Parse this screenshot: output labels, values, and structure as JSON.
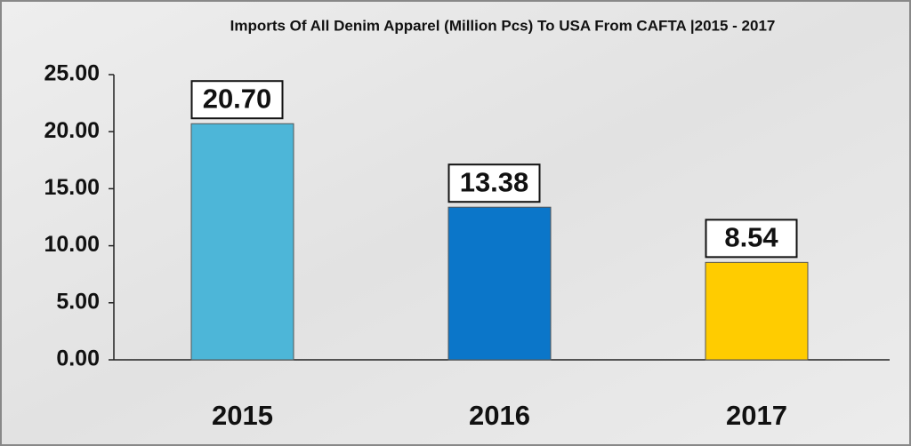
{
  "chart_data": {
    "type": "bar",
    "title": "Imports Of All Denim Apparel (Million Pcs) To USA From CAFTA |2015 - 2017",
    "categories": [
      "2015",
      "2016",
      "2017"
    ],
    "values": [
      20.7,
      13.38,
      8.54
    ],
    "value_labels": [
      "20.70",
      "13.38",
      "8.54"
    ],
    "colors": [
      "#4db6d8",
      "#0b76c9",
      "#ffcc00"
    ],
    "ylim": [
      0,
      25
    ],
    "yticks": [
      {
        "value": 0,
        "label": "0.00"
      },
      {
        "value": 5,
        "label": "5.00"
      },
      {
        "value": 10,
        "label": "10.00"
      },
      {
        "value": 15,
        "label": "15.00"
      },
      {
        "value": 20,
        "label": "20.00"
      },
      {
        "value": 25,
        "label": "25.00"
      }
    ],
    "grid": false
  }
}
